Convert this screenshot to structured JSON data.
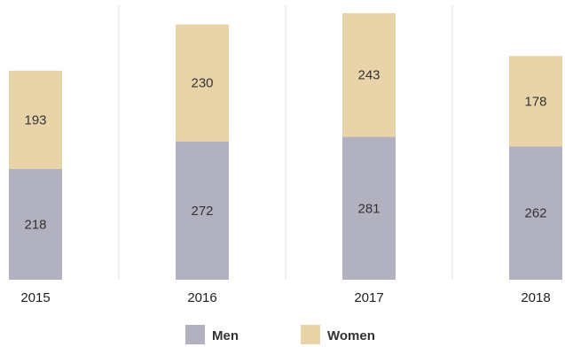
{
  "chart_data": {
    "type": "bar",
    "stacked": true,
    "categories": [
      "2015",
      "2016",
      "2017",
      "2018"
    ],
    "series": [
      {
        "name": "Men",
        "values": [
          218,
          272,
          281,
          262
        ],
        "color": "#b2b1bf"
      },
      {
        "name": "Women",
        "values": [
          193,
          230,
          243,
          178
        ],
        "color": "#e9d4aa"
      }
    ],
    "title": "",
    "xlabel": "",
    "ylabel": "",
    "ylim": [
      0,
      550
    ],
    "grid": false,
    "category_dividers": true,
    "data_labels": true,
    "legend_position": "bottom"
  }
}
